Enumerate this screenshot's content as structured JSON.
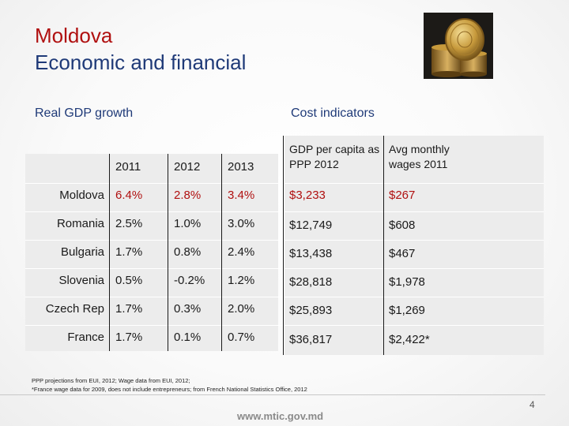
{
  "title": {
    "line1": "Moldova",
    "line2": "Economic and financial"
  },
  "gdp_section": {
    "label": "Real GDP growth"
  },
  "cost_section": {
    "label": "Cost indicators"
  },
  "table": {
    "years": [
      "2011",
      "2012",
      "2013"
    ],
    "cost_headers": [
      "GDP per capita as PPP 2012",
      "Avg monthly wages 2011"
    ],
    "rows": [
      {
        "country": "Moldova",
        "g2011": "6.4%",
        "g2012": "2.8%",
        "g2013": "3.4%",
        "gdp_ppp": "$3,233",
        "wages": "$267"
      },
      {
        "country": "Romania",
        "g2011": "2.5%",
        "g2012": "1.0%",
        "g2013": "3.0%",
        "gdp_ppp": "$12,749",
        "wages": "$608"
      },
      {
        "country": "Bulgaria",
        "g2011": "1.7%",
        "g2012": "0.8%",
        "g2013": "2.4%",
        "gdp_ppp": "$13,438",
        "wages": "$467"
      },
      {
        "country": "Slovenia",
        "g2011": "0.5%",
        "g2012": "-0.2%",
        "g2013": "1.2%",
        "gdp_ppp": "$28,818",
        "wages": "$1,978"
      },
      {
        "country": "Czech Rep",
        "g2011": "1.7%",
        "g2012": "0.3%",
        "g2013": "2.0%",
        "gdp_ppp": "$25,893",
        "wages": "$1,269"
      },
      {
        "country": "France",
        "g2011": "1.7%",
        "g2012": "0.1%",
        "g2013": "0.7%",
        "gdp_ppp": "$36,817",
        "wages": "$2,422*"
      }
    ],
    "highlight_color": "#b01010"
  },
  "footnotes": {
    "line1": "PPP projections from EUI, 2012; Wage data from EUI, 2012;",
    "line2": "*France wage data for 2009, does not include entrepreneurs; from French National Statistics Office, 2012"
  },
  "footer": {
    "url": "www.mtic.gov.md",
    "page_number": "4"
  },
  "image": {
    "icon": "coins-stack-photo"
  }
}
